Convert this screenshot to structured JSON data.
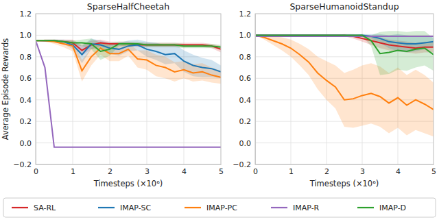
{
  "chart_data": [
    {
      "type": "line",
      "title": "SparseHalfCheetah",
      "x_label": "Timesteps (×10⁶)",
      "y_label": "Average Episode Rewards",
      "x": [
        0,
        0.25,
        0.5,
        0.75,
        1,
        1.25,
        1.5,
        1.75,
        2,
        2.25,
        2.5,
        2.75,
        3,
        3.25,
        3.5,
        3.75,
        4,
        4.25,
        4.5,
        4.75,
        5
      ],
      "xlim": [
        0,
        5
      ],
      "xticks": [
        0,
        1,
        2,
        3,
        4,
        5
      ],
      "ylim": [
        -0.2,
        1.2
      ],
      "yticks": [
        {
          "value": -0.2,
          "label": "−0.2"
        },
        {
          "value": 0,
          "label": "0.0"
        },
        0.2,
        0.4,
        0.6,
        0.8,
        {
          "value": 1,
          "label": "1.0"
        },
        1.2
      ],
      "grid": true,
      "legend": "bottom",
      "series": [
        {
          "name": "SA-RL",
          "color": "#d62728",
          "values": [
            0.95,
            0.95,
            0.95,
            0.94,
            0.93,
            0.86,
            0.91,
            0.93,
            0.92,
            0.92,
            0.92,
            0.91,
            0.91,
            0.91,
            0.91,
            0.91,
            0.91,
            0.91,
            0.91,
            0.9,
            0.87
          ],
          "spread": [
            0,
            0.01,
            0.01,
            0.02,
            0.03,
            0.05,
            0.04,
            0.03,
            0.02,
            0.02,
            0.02,
            0.02,
            0.02,
            0.02,
            0.02,
            0.02,
            0.02,
            0.02,
            0.02,
            0.02,
            0.03
          ]
        },
        {
          "name": "IMAP-SC",
          "color": "#1f77b4",
          "values": [
            0.95,
            0.95,
            0.95,
            0.94,
            0.91,
            0.82,
            0.92,
            0.91,
            0.88,
            0.87,
            0.9,
            0.91,
            0.87,
            0.85,
            0.82,
            0.83,
            0.76,
            0.72,
            0.7,
            0.69,
            0.66
          ],
          "spread": [
            0,
            0.01,
            0.01,
            0.02,
            0.04,
            0.08,
            0.05,
            0.04,
            0.05,
            0.06,
            0.05,
            0.05,
            0.07,
            0.08,
            0.09,
            0.09,
            0.1,
            0.1,
            0.09,
            0.08,
            0.06
          ]
        },
        {
          "name": "IMAP-PC",
          "color": "#ff7f0e",
          "values": [
            0.95,
            0.95,
            0.94,
            0.92,
            0.9,
            0.67,
            0.8,
            0.88,
            0.83,
            0.83,
            0.87,
            0.78,
            0.77,
            0.72,
            0.7,
            0.66,
            0.68,
            0.65,
            0.66,
            0.63,
            0.61
          ],
          "spread": [
            0,
            0.01,
            0.02,
            0.03,
            0.05,
            0.1,
            0.08,
            0.06,
            0.07,
            0.07,
            0.06,
            0.08,
            0.09,
            0.1,
            0.1,
            0.09,
            0.08,
            0.08,
            0.08,
            0.07,
            0.06
          ]
        },
        {
          "name": "IMAP-R",
          "color": "#9467bd",
          "values": [
            0.95,
            0.7,
            -0.04,
            -0.04,
            -0.04,
            -0.04,
            -0.04,
            -0.04,
            -0.04,
            -0.04,
            -0.04,
            -0.04,
            -0.04,
            -0.04,
            -0.04,
            -0.04,
            -0.04,
            -0.04,
            -0.04,
            -0.04,
            -0.04
          ],
          "spread": [
            0,
            0,
            0,
            0,
            0,
            0,
            0,
            0,
            0,
            0,
            0,
            0,
            0,
            0,
            0,
            0,
            0,
            0,
            0,
            0,
            0
          ]
        },
        {
          "name": "IMAP-D",
          "color": "#2ca02c",
          "values": [
            0.95,
            0.95,
            0.95,
            0.94,
            0.93,
            0.93,
            0.92,
            0.85,
            0.87,
            0.92,
            0.92,
            0.92,
            0.91,
            0.91,
            0.91,
            0.91,
            0.9,
            0.9,
            0.9,
            0.9,
            0.89
          ],
          "spread": [
            0,
            0,
            0.01,
            0.01,
            0.02,
            0.03,
            0.05,
            0.08,
            0.06,
            0.02,
            0.02,
            0.02,
            0.02,
            0.02,
            0.02,
            0.02,
            0.02,
            0.02,
            0.02,
            0.02,
            0.02
          ]
        }
      ]
    },
    {
      "type": "line",
      "title": "SparseHumanoidStandup",
      "x_label": "Timesteps (×10⁶)",
      "x": [
        0,
        0.25,
        0.5,
        0.75,
        1,
        1.25,
        1.5,
        1.75,
        2,
        2.25,
        2.5,
        2.75,
        3,
        3.25,
        3.5,
        3.75,
        4,
        4.25,
        4.5,
        4.75,
        5
      ],
      "xlim": [
        0,
        5
      ],
      "xticks": [
        0,
        1,
        2,
        3,
        4,
        5
      ],
      "ylim": [
        -0.2,
        1.2
      ],
      "yticks": [
        {
          "value": -0.2,
          "label": "−0.2"
        },
        {
          "value": 0,
          "label": "0.0"
        },
        0.2,
        0.4,
        0.6,
        0.8,
        {
          "value": 1,
          "label": "1.0"
        },
        1.2
      ],
      "grid": true,
      "series": [
        {
          "color": "#d62728",
          "values": [
            1,
            1,
            1,
            1,
            1,
            1,
            1,
            1,
            1,
            1,
            1,
            0.99,
            0.97,
            0.95,
            0.93,
            0.91,
            0.9,
            0.89,
            0.88,
            0.89,
            0.89
          ],
          "spread": [
            0,
            0,
            0,
            0,
            0,
            0,
            0,
            0,
            0,
            0,
            0.01,
            0.02,
            0.03,
            0.04,
            0.05,
            0.05,
            0.05,
            0.05,
            0.05,
            0.05,
            0.05
          ]
        },
        {
          "color": "#1f77b4",
          "values": [
            1,
            1,
            1,
            1,
            1,
            1,
            1,
            1,
            1,
            1,
            1,
            1,
            1,
            0.99,
            0.97,
            0.94,
            0.93,
            0.92,
            0.92,
            0.93,
            0.94
          ],
          "spread": [
            0,
            0,
            0,
            0,
            0,
            0,
            0,
            0,
            0,
            0,
            0,
            0,
            0.01,
            0.02,
            0.04,
            0.06,
            0.08,
            0.08,
            0.07,
            0.06,
            0.05
          ]
        },
        {
          "color": "#ff7f0e",
          "values": [
            1,
            0.98,
            0.95,
            0.92,
            0.88,
            0.82,
            0.75,
            0.65,
            0.58,
            0.52,
            0.4,
            0.41,
            0.44,
            0.46,
            0.43,
            0.37,
            0.42,
            0.35,
            0.4,
            0.36,
            0.31
          ],
          "spread": [
            0,
            0.02,
            0.04,
            0.06,
            0.08,
            0.1,
            0.12,
            0.15,
            0.18,
            0.2,
            0.25,
            0.27,
            0.28,
            0.28,
            0.28,
            0.28,
            0.28,
            0.28,
            0.28,
            0.27,
            0.25
          ]
        },
        {
          "color": "#9467bd",
          "values": [
            0.99,
            0.99,
            0.99,
            0.99,
            0.99,
            0.99,
            0.99,
            0.99,
            0.99,
            0.99,
            0.99,
            0.99,
            0.99,
            0.99,
            0.99,
            0.99,
            0.99,
            0.99,
            0.99,
            0.99,
            0.99
          ],
          "spread": [
            0,
            0,
            0,
            0,
            0,
            0,
            0,
            0,
            0,
            0,
            0,
            0,
            0,
            0,
            0,
            0,
            0,
            0,
            0,
            0,
            0
          ]
        },
        {
          "color": "#2ca02c",
          "values": [
            1,
            1,
            1,
            1,
            1,
            1,
            1,
            1,
            1,
            1,
            1,
            1,
            1,
            0.95,
            0.83,
            0.84,
            0.86,
            0.85,
            0.87,
            0.88,
            0.82
          ],
          "spread": [
            0,
            0,
            0,
            0,
            0,
            0,
            0,
            0,
            0,
            0,
            0,
            0,
            0.01,
            0.05,
            0.2,
            0.2,
            0.18,
            0.18,
            0.17,
            0.16,
            0.15
          ]
        }
      ]
    }
  ]
}
